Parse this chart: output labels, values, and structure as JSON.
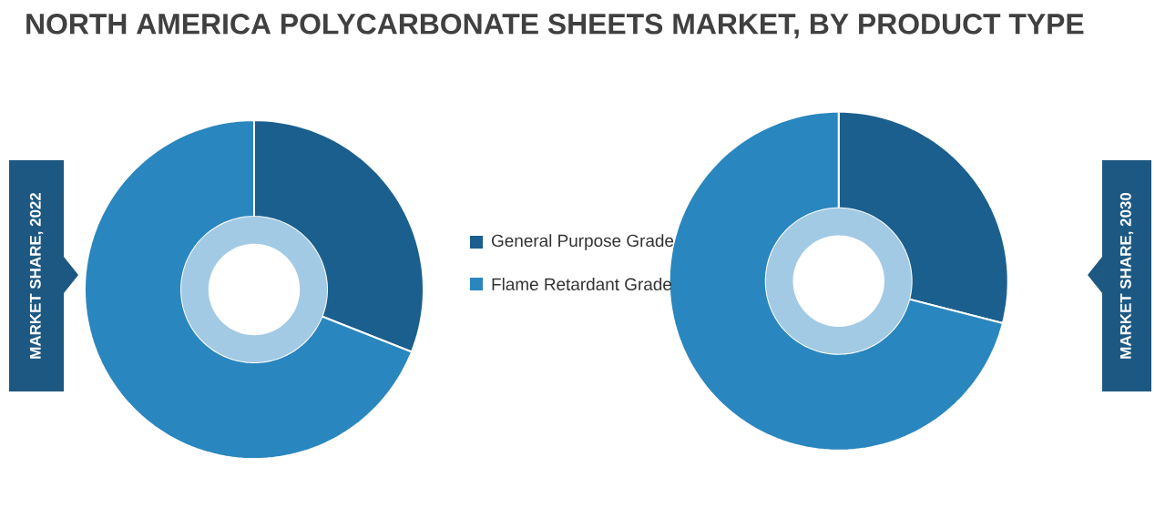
{
  "chart_data": {
    "type": "donut",
    "title": "NORTH AMERICA POLYCARBONATE SHEETS MARKET, BY PRODUCT TYPE",
    "categories": [
      "General Purpose Grade",
      "Flame Retardant Grade"
    ],
    "colors": [
      "#1b5f8e",
      "#2a86be"
    ],
    "legend": "right",
    "series": [
      {
        "name": "MARKET SHARE, 2022",
        "values": [
          31,
          69
        ]
      },
      {
        "name": "MARKET SHARE, 2030",
        "values": [
          29,
          71
        ]
      }
    ]
  }
}
